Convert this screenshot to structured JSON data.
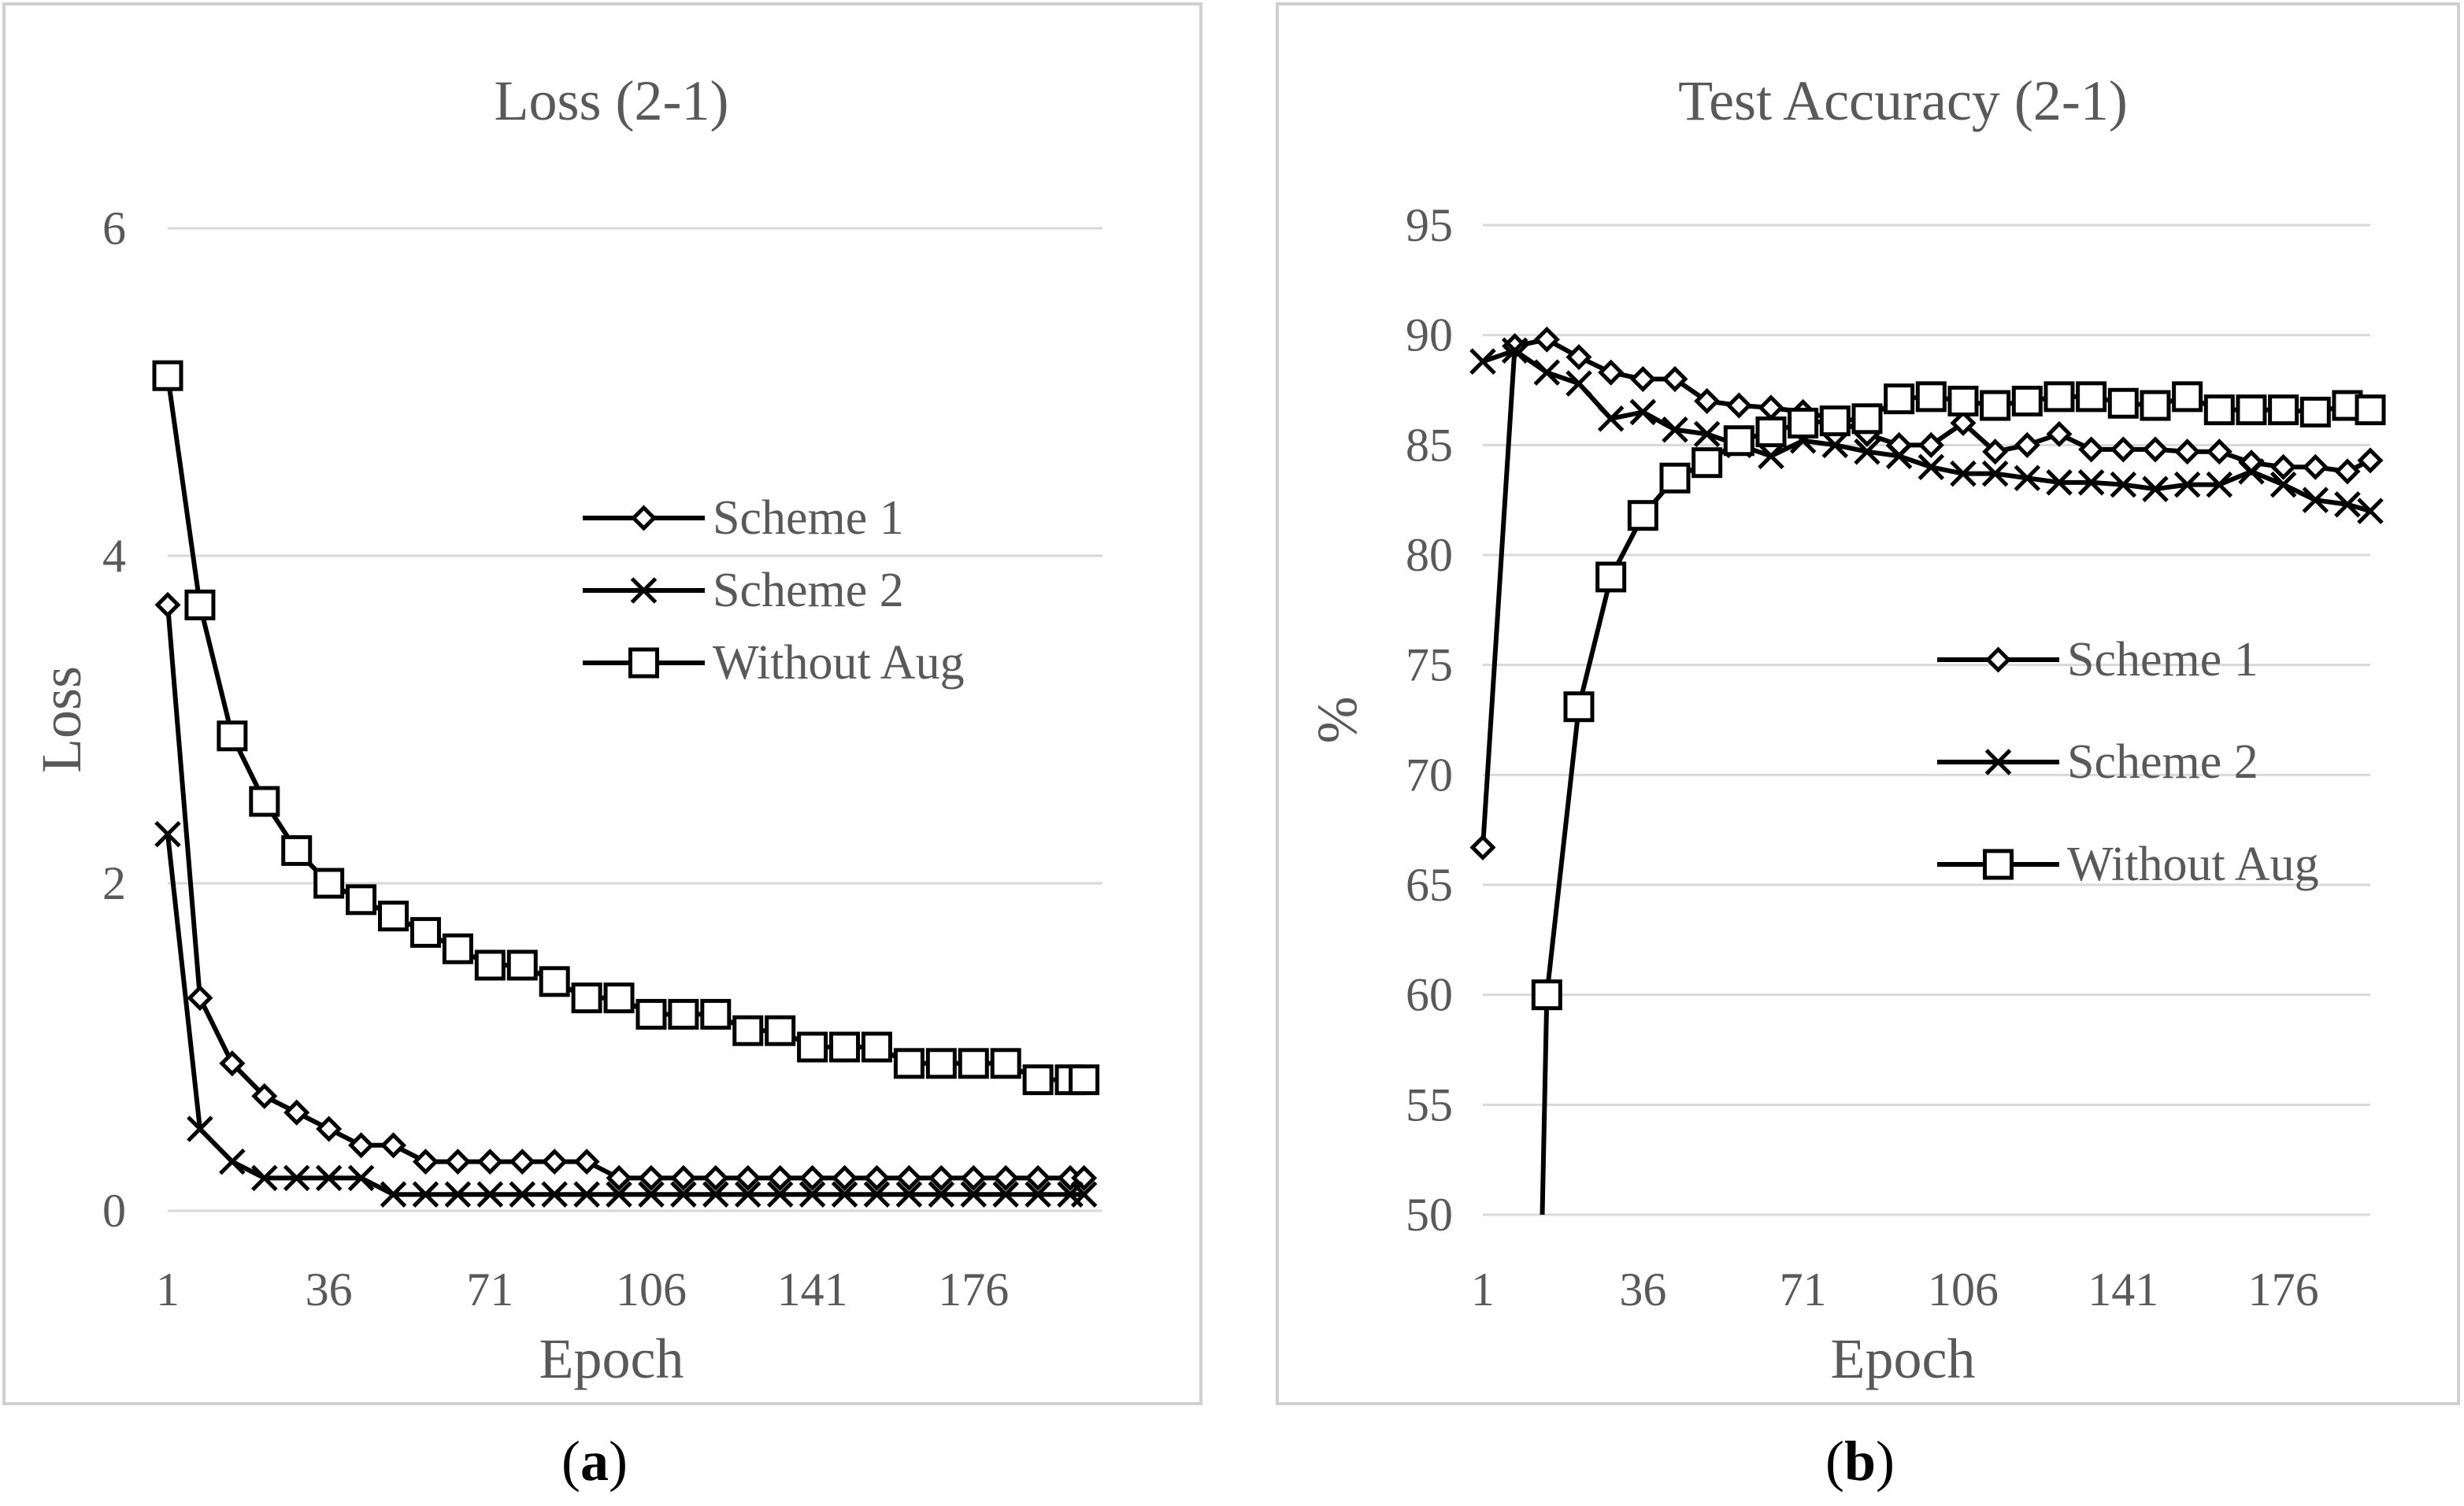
{
  "chart_data": [
    {
      "type": "line",
      "title": "Loss (2-1)",
      "xlabel": "Epoch",
      "ylabel": "Loss",
      "panel_label": "a",
      "ylim": [
        0,
        6
      ],
      "yticks": [
        0,
        2,
        4,
        6
      ],
      "xlim": [
        1,
        204
      ],
      "xticks": [
        1,
        36,
        71,
        106,
        141,
        176
      ],
      "legend_position": "center-right",
      "grid": true,
      "series": [
        {
          "name": "Scheme 1",
          "marker": "diamond",
          "x": [
            1,
            8,
            15,
            22,
            29,
            36,
            43,
            50,
            57,
            64,
            71,
            78,
            85,
            92,
            99,
            106,
            113,
            120,
            127,
            134,
            141,
            148,
            155,
            162,
            169,
            176,
            183,
            190,
            197,
            200
          ],
          "values": [
            3.7,
            1.3,
            0.9,
            0.7,
            0.6,
            0.5,
            0.4,
            0.4,
            0.3,
            0.3,
            0.3,
            0.3,
            0.3,
            0.3,
            0.2,
            0.2,
            0.2,
            0.2,
            0.2,
            0.2,
            0.2,
            0.2,
            0.2,
            0.2,
            0.2,
            0.2,
            0.2,
            0.2,
            0.2,
            0.2
          ]
        },
        {
          "name": "Scheme 2",
          "marker": "x",
          "x": [
            1,
            8,
            15,
            22,
            29,
            36,
            43,
            50,
            57,
            64,
            71,
            78,
            85,
            92,
            99,
            106,
            113,
            120,
            127,
            134,
            141,
            148,
            155,
            162,
            169,
            176,
            183,
            190,
            197,
            200
          ],
          "values": [
            2.3,
            0.5,
            0.3,
            0.2,
            0.2,
            0.2,
            0.2,
            0.1,
            0.1,
            0.1,
            0.1,
            0.1,
            0.1,
            0.1,
            0.1,
            0.1,
            0.1,
            0.1,
            0.1,
            0.1,
            0.1,
            0.1,
            0.1,
            0.1,
            0.1,
            0.1,
            0.1,
            0.1,
            0.1,
            0.1
          ]
        },
        {
          "name": "Without Aug",
          "marker": "square",
          "x": [
            1,
            8,
            15,
            22,
            29,
            36,
            43,
            50,
            57,
            64,
            71,
            78,
            85,
            92,
            99,
            106,
            113,
            120,
            127,
            134,
            141,
            148,
            155,
            162,
            169,
            176,
            183,
            190,
            197,
            200
          ],
          "values": [
            5.1,
            3.7,
            2.9,
            2.5,
            2.2,
            2.0,
            1.9,
            1.8,
            1.7,
            1.6,
            1.5,
            1.5,
            1.4,
            1.3,
            1.3,
            1.2,
            1.2,
            1.2,
            1.1,
            1.1,
            1.0,
            1.0,
            1.0,
            0.9,
            0.9,
            0.9,
            0.9,
            0.8,
            0.8,
            0.8
          ]
        }
      ]
    },
    {
      "type": "line",
      "title": "Test Accuracy (2-1)",
      "xlabel": "Epoch",
      "ylabel": "%",
      "panel_label": "b",
      "ylim": [
        50,
        95
      ],
      "yticks": [
        50,
        55,
        60,
        65,
        70,
        75,
        80,
        85,
        90,
        95
      ],
      "xlim": [
        1,
        195
      ],
      "xticks": [
        1,
        36,
        71,
        106,
        141,
        176
      ],
      "legend_position": "center-right",
      "grid": true,
      "series": [
        {
          "name": "Scheme 1",
          "marker": "diamond",
          "x": [
            1,
            8,
            15,
            22,
            29,
            36,
            43,
            50,
            57,
            64,
            71,
            78,
            85,
            92,
            99,
            106,
            113,
            120,
            127,
            134,
            141,
            148,
            155,
            162,
            169,
            176,
            183,
            190,
            195
          ],
          "values": [
            66.7,
            89.5,
            89.8,
            89.0,
            88.3,
            88.0,
            88.0,
            87.0,
            86.8,
            86.7,
            86.5,
            86.2,
            85.5,
            85.0,
            85.0,
            86.0,
            84.7,
            85.0,
            85.5,
            84.8,
            84.8,
            84.8,
            84.7,
            84.7,
            84.2,
            84.0,
            84.0,
            83.8,
            84.3
          ]
        },
        {
          "name": "Scheme 2",
          "marker": "x",
          "x": [
            1,
            8,
            15,
            22,
            29,
            36,
            43,
            50,
            57,
            64,
            71,
            78,
            85,
            92,
            99,
            106,
            113,
            120,
            127,
            134,
            141,
            148,
            155,
            162,
            169,
            176,
            183,
            190,
            195
          ],
          "values": [
            88.8,
            89.3,
            88.3,
            87.8,
            86.2,
            86.5,
            85.7,
            85.5,
            85.0,
            84.5,
            85.2,
            85.0,
            84.7,
            84.5,
            84.0,
            83.7,
            83.7,
            83.5,
            83.3,
            83.3,
            83.2,
            83.0,
            83.2,
            83.2,
            83.8,
            83.2,
            82.5,
            82.3,
            82.0
          ]
        },
        {
          "name": "Without Aug",
          "marker": "square",
          "x": [
            15,
            22,
            29,
            36,
            43,
            50,
            57,
            64,
            71,
            78,
            85,
            92,
            99,
            106,
            113,
            120,
            127,
            134,
            141,
            148,
            155,
            162,
            169,
            176,
            183,
            190,
            195
          ],
          "values": [
            60.0,
            73.1,
            79.0,
            81.8,
            83.5,
            84.2,
            85.2,
            85.6,
            86.0,
            86.1,
            86.2,
            87.1,
            87.2,
            87.0,
            86.8,
            87.0,
            87.2,
            87.2,
            86.9,
            86.8,
            87.2,
            86.6,
            86.6,
            86.6,
            86.5,
            86.8,
            86.6
          ],
          "line_start": {
            "x": 14,
            "y": 50
          }
        }
      ]
    }
  ]
}
